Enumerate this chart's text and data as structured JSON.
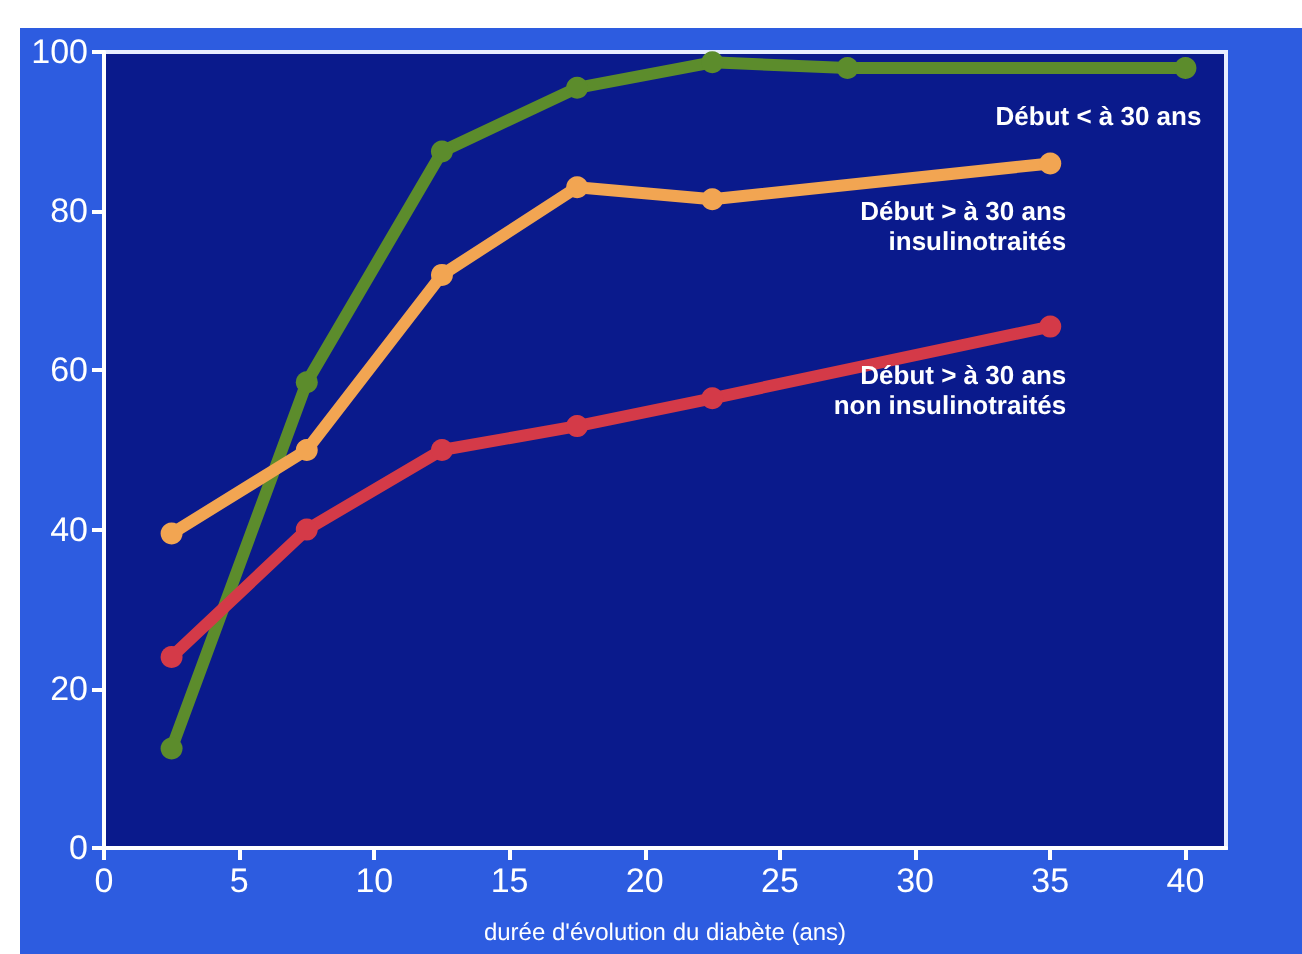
{
  "chart_data": {
    "type": "line",
    "xlabel": "durée d'évolution du diabète (ans)",
    "xlim": [
      0,
      41.5
    ],
    "xticks": [
      0,
      5,
      10,
      15,
      20,
      25,
      30,
      35,
      40
    ],
    "ylim": [
      0,
      100
    ],
    "yticks": [
      0,
      20,
      40,
      60,
      80,
      100
    ],
    "grid": false,
    "legend": false,
    "marker": "circle",
    "line_style": "solid",
    "series": [
      {
        "name": "Début < à 30 ans",
        "color": "#5c8c2c",
        "x": [
          2.5,
          7.5,
          12.5,
          17.5,
          22.5,
          27.5,
          40
        ],
        "values": [
          12.5,
          58.5,
          87.5,
          95.5,
          98.7,
          98,
          98
        ]
      },
      {
        "name": "Début > à 30 ans\ninsulinotraités",
        "color": "#f2a552",
        "x": [
          2.5,
          7.5,
          12.5,
          17.5,
          22.5,
          35
        ],
        "values": [
          39.5,
          50,
          72,
          83,
          81.5,
          86
        ]
      },
      {
        "name": "Début > à 30 ans\nnon insulinotraités",
        "color": "#d43a48",
        "x": [
          2.5,
          7.5,
          12.5,
          17.5,
          22.5,
          35
        ],
        "values": [
          24,
          40,
          50,
          53,
          56.5,
          65.5
        ]
      }
    ]
  }
}
